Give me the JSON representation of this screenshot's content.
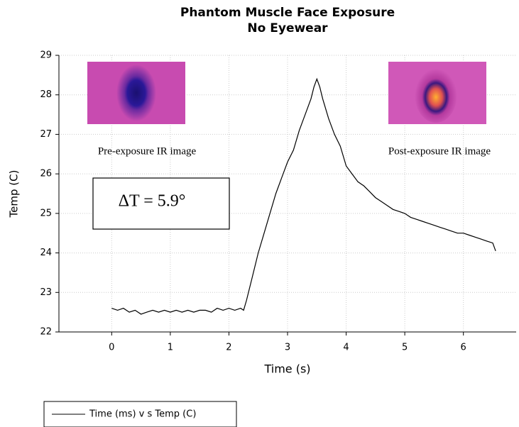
{
  "chart_data": {
    "type": "line",
    "title": "Phantom Muscle Face Exposure",
    "subtitle": "No Eyewear",
    "x_label": "Time (s)",
    "y_label": "Temp (C)",
    "annotations": [
      "Pre-exposure IR image",
      "Post-exposure IR image",
      "ΔT = 5.9°"
    ],
    "x": [
      0,
      0.1,
      0.2,
      0.3,
      0.4,
      0.5,
      0.6,
      0.7,
      0.8,
      0.9,
      1.0,
      1.1,
      1.2,
      1.3,
      1.4,
      1.5,
      1.6,
      1.7,
      1.8,
      1.9,
      2.0,
      2.1,
      2.2,
      2.25,
      2.3,
      2.4,
      2.5,
      2.6,
      2.7,
      2.8,
      2.9,
      3.0,
      3.1,
      3.2,
      3.3,
      3.4,
      3.45,
      3.5,
      3.55,
      3.6,
      3.7,
      3.8,
      3.9,
      4.0,
      4.1,
      4.2,
      4.3,
      4.4,
      4.5,
      4.6,
      4.7,
      4.8,
      4.9,
      5.0,
      5.1,
      5.2,
      5.3,
      5.4,
      5.5,
      5.6,
      5.7,
      5.8,
      5.9,
      6.0,
      6.1,
      6.2,
      6.3,
      6.4,
      6.5,
      6.55
    ],
    "series": [
      {
        "name": "Time (ms) v s Temp (C)",
        "color": "#000000",
        "values": [
          22.6,
          22.55,
          22.6,
          22.5,
          22.55,
          22.45,
          22.5,
          22.55,
          22.5,
          22.55,
          22.5,
          22.55,
          22.5,
          22.55,
          22.5,
          22.55,
          22.55,
          22.5,
          22.6,
          22.55,
          22.6,
          22.55,
          22.6,
          22.55,
          22.8,
          23.4,
          24.0,
          24.5,
          25.0,
          25.5,
          25.9,
          26.3,
          26.6,
          27.1,
          27.5,
          27.9,
          28.2,
          28.4,
          28.2,
          27.9,
          27.4,
          27.0,
          26.7,
          26.2,
          26.0,
          25.8,
          25.7,
          25.55,
          25.4,
          25.3,
          25.2,
          25.1,
          25.05,
          25.0,
          24.9,
          24.85,
          24.8,
          24.75,
          24.7,
          24.65,
          24.6,
          24.55,
          24.5,
          24.5,
          24.45,
          24.4,
          24.35,
          24.3,
          24.25,
          24.05
        ]
      }
    ],
    "xlim": [
      -0.9,
      6.9
    ],
    "ylim": [
      22,
      29
    ],
    "xticks": [
      0,
      1,
      2,
      3,
      4,
      5,
      6
    ],
    "yticks": [
      22,
      23,
      24,
      25,
      26,
      27,
      28,
      29
    ],
    "grid": true
  }
}
